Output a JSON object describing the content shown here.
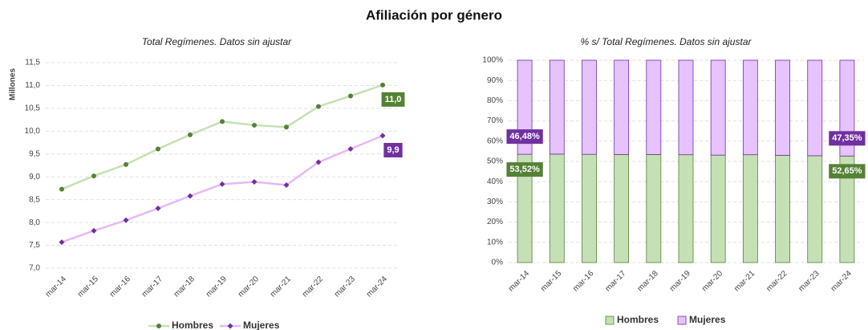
{
  "title": "Afiliación por género",
  "chart_data": [
    {
      "type": "line",
      "title": "Total Regímenes. Datos sin ajustar",
      "ylabel": "Millones",
      "categories": [
        "mar-14",
        "mar-15",
        "mar-16",
        "mar-17",
        "mar-18",
        "mar-19",
        "mar-20",
        "mar-21",
        "mar-22",
        "mar-23",
        "mar-24"
      ],
      "series": [
        {
          "name": "Hombres",
          "color": "#c5e0b4",
          "marker_color": "#548235",
          "values": [
            8.73,
            9.02,
            9.27,
            9.61,
            9.92,
            10.21,
            10.13,
            10.09,
            10.54,
            10.77,
            11.01
          ],
          "value_labels": [
            null,
            null,
            null,
            null,
            null,
            null,
            null,
            null,
            null,
            null,
            "11,0"
          ]
        },
        {
          "name": "Mujeres",
          "color": "#e6b9f5",
          "marker_color": "#7030a0",
          "values": [
            7.57,
            7.82,
            8.05,
            8.31,
            8.58,
            8.84,
            8.89,
            8.82,
            9.32,
            9.61,
            9.9
          ],
          "value_labels": [
            null,
            null,
            null,
            null,
            null,
            null,
            null,
            null,
            null,
            null,
            "9,9"
          ]
        }
      ],
      "ylim": [
        7,
        11.5
      ],
      "yticks": [
        {
          "value": 7,
          "label": "7,0"
        },
        {
          "value": 7.5,
          "label": "7,5"
        },
        {
          "value": 8,
          "label": "8,0"
        },
        {
          "value": 8.5,
          "label": "8,5"
        },
        {
          "value": 9,
          "label": "9,0"
        },
        {
          "value": 9.5,
          "label": "9,5"
        },
        {
          "value": 10,
          "label": "10,0"
        },
        {
          "value": 10.5,
          "label": "10,5"
        },
        {
          "value": 11,
          "label": "11,0"
        },
        {
          "value": 11.5,
          "label": "11,5"
        }
      ],
      "grid": true
    },
    {
      "type": "bar",
      "stacked": true,
      "title": "% s/ Total Regímenes. Datos sin ajustar",
      "categories": [
        "mar-14",
        "mar-15",
        "mar-16",
        "mar-17",
        "mar-18",
        "mar-19",
        "mar-20",
        "mar-21",
        "mar-22",
        "mar-23",
        "mar-24"
      ],
      "series": [
        {
          "name": "Hombres",
          "color": "#c5e0b4",
          "marker_color": "#548235",
          "values": [
            53.52,
            53.6,
            53.5,
            53.4,
            53.4,
            53.3,
            53.1,
            53.3,
            53.0,
            52.8,
            52.65
          ],
          "value_labels": [
            "53,52%",
            null,
            null,
            null,
            null,
            null,
            null,
            null,
            null,
            null,
            "52,65%"
          ]
        },
        {
          "name": "Mujeres",
          "color": "#e6c2ff",
          "marker_color": "#7030a0",
          "values": [
            46.48,
            46.4,
            46.5,
            46.6,
            46.6,
            46.7,
            46.9,
            46.7,
            47.0,
            47.2,
            47.35
          ],
          "value_labels": [
            "46,48%",
            null,
            null,
            null,
            null,
            null,
            null,
            null,
            null,
            null,
            "47,35%"
          ]
        }
      ],
      "ylim": [
        0,
        100
      ],
      "yticks": [
        {
          "value": 0,
          "label": "0%"
        },
        {
          "value": 10,
          "label": "10%"
        },
        {
          "value": 20,
          "label": "20%"
        },
        {
          "value": 30,
          "label": "30%"
        },
        {
          "value": 40,
          "label": "40%"
        },
        {
          "value": 50,
          "label": "50%"
        },
        {
          "value": 60,
          "label": "60%"
        },
        {
          "value": 70,
          "label": "70%"
        },
        {
          "value": 80,
          "label": "80%"
        },
        {
          "value": 90,
          "label": "90%"
        },
        {
          "value": 100,
          "label": "100%"
        }
      ],
      "grid": true
    }
  ]
}
